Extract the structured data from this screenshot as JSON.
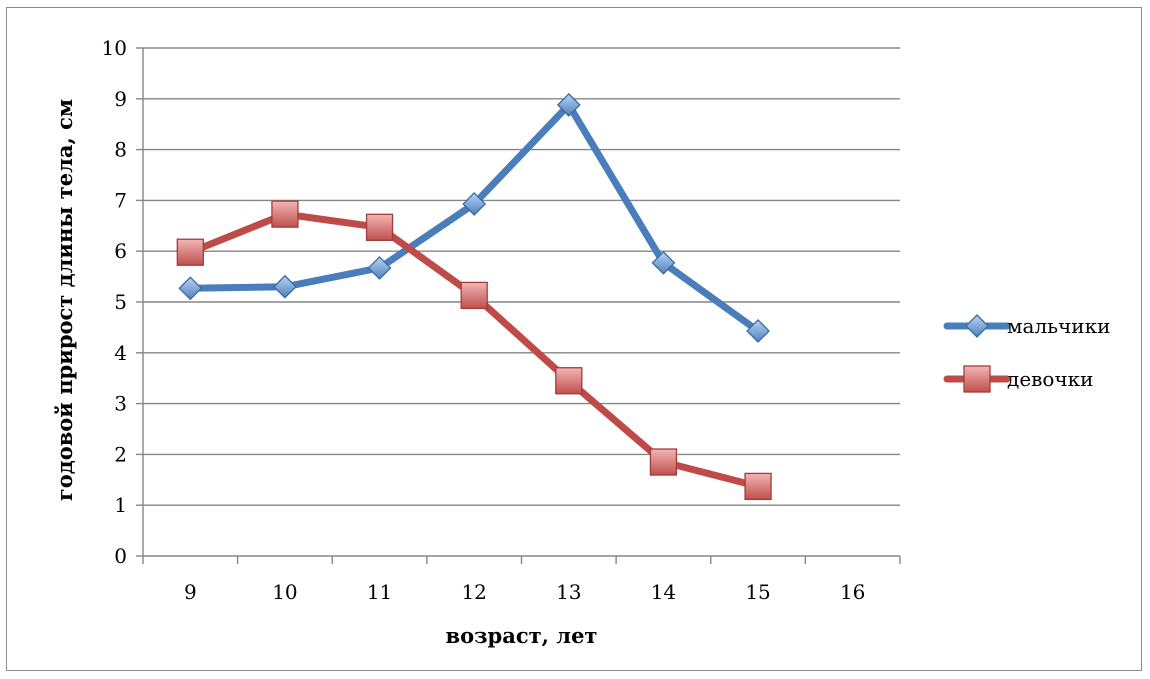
{
  "chart_data": {
    "type": "line",
    "title": "",
    "xlabel": "возраст, лет",
    "ylabel": "годовой прирост длины тела, см",
    "categories": [
      "9",
      "10",
      "11",
      "12",
      "13",
      "14",
      "15",
      "16"
    ],
    "ylim": [
      0,
      10
    ],
    "yticks": [
      "0",
      "1",
      "2",
      "3",
      "4",
      "5",
      "6",
      "7",
      "8",
      "9",
      "10"
    ],
    "grid": true,
    "legend_position": "right",
    "series": [
      {
        "name": "мальчики",
        "color": "#4a7ebb",
        "marker": "diamond",
        "values": [
          5.27,
          5.3,
          5.67,
          6.93,
          8.88,
          5.77,
          4.43,
          null
        ]
      },
      {
        "name": "девочки",
        "color": "#be4b48",
        "marker": "square",
        "values": [
          5.98,
          6.73,
          6.47,
          5.13,
          3.45,
          1.85,
          1.37,
          null
        ]
      }
    ]
  }
}
